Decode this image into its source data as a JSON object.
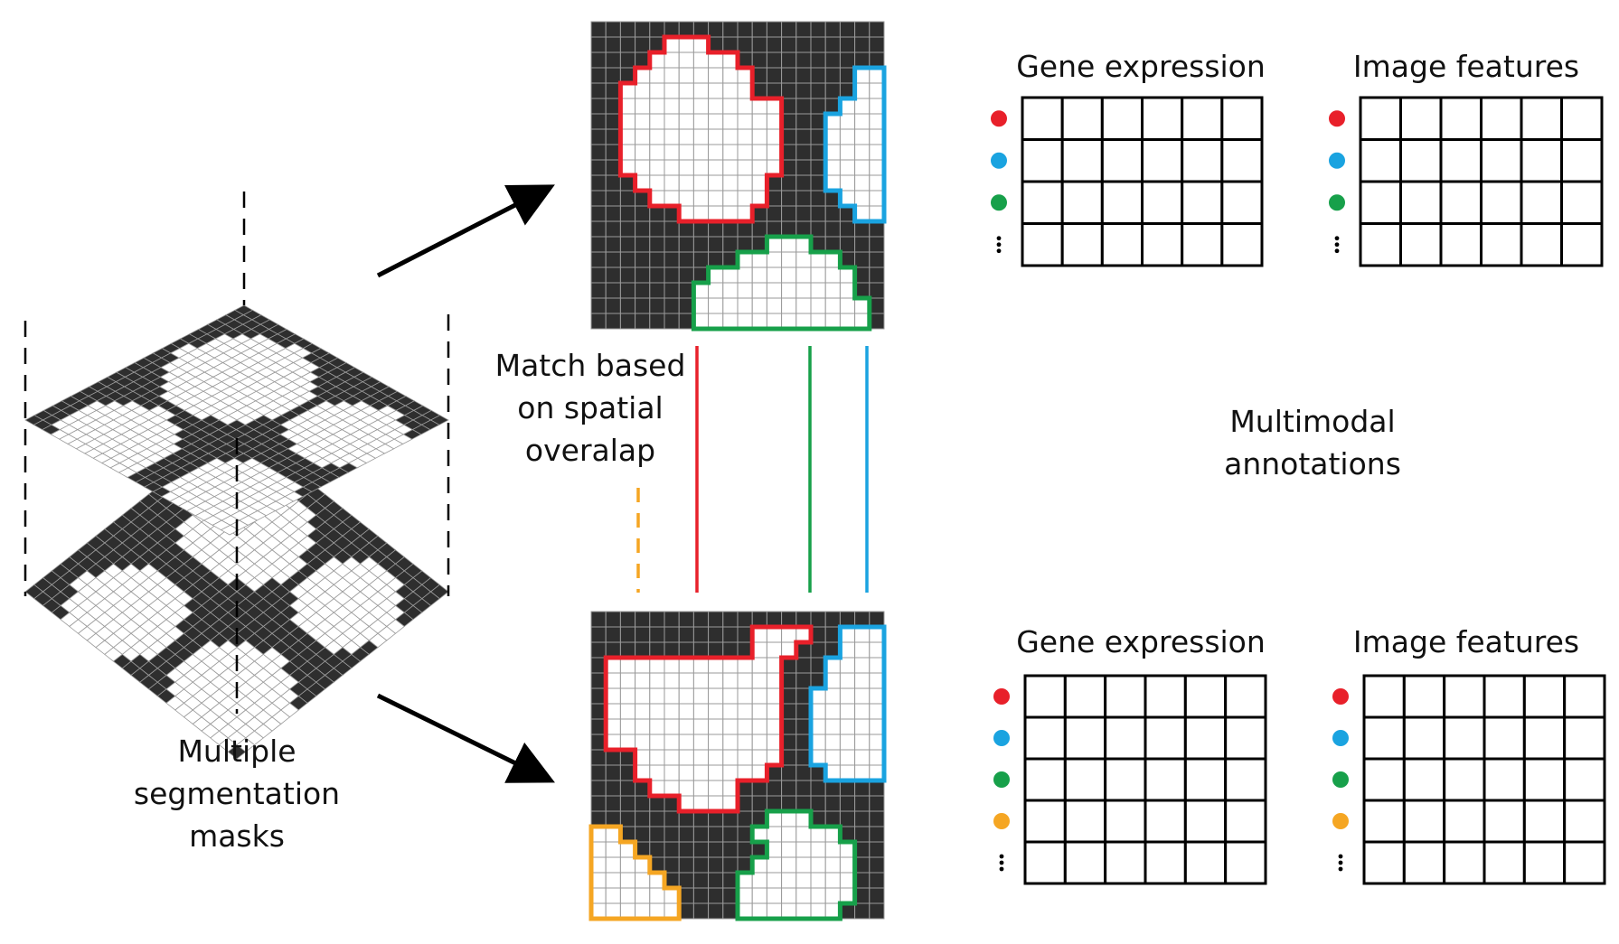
{
  "labels": {
    "masks_line1": "Multiple",
    "masks_line2": "segmentation",
    "masks_line3": "masks",
    "match_line1": "Match based",
    "match_line2": "on spatial",
    "match_line3": "overalap",
    "multimodal_line1": "Multimodal",
    "multimodal_line2": "annotations"
  },
  "colors": {
    "dark": "#2e2e2e",
    "light": "#ffffff",
    "grid": "#9a9a9a",
    "red": "#e8202a",
    "blue": "#1aa3e0",
    "green": "#17a04a",
    "orange": "#f5a623"
  },
  "top_tables": [
    {
      "title": "Gene expression",
      "rows": 4,
      "cols": 6,
      "markers": [
        "red",
        "blue",
        "green",
        "ellipsis"
      ]
    },
    {
      "title": "Image features",
      "rows": 4,
      "cols": 6,
      "markers": [
        "red",
        "blue",
        "green",
        "ellipsis"
      ]
    }
  ],
  "bottom_tables": [
    {
      "title": "Gene expression",
      "rows": 5,
      "cols": 6,
      "markers": [
        "red",
        "blue",
        "green",
        "orange",
        "ellipsis"
      ]
    },
    {
      "title": "Image features",
      "rows": 5,
      "cols": 6,
      "markers": [
        "red",
        "blue",
        "green",
        "orange",
        "ellipsis"
      ]
    }
  ],
  "match_lines": [
    {
      "color": "orange",
      "style": "dashed"
    },
    {
      "color": "red",
      "style": "solid"
    },
    {
      "color": "green",
      "style": "solid"
    },
    {
      "color": "blue",
      "style": "solid"
    }
  ]
}
